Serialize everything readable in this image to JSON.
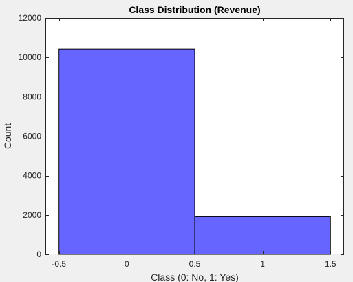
{
  "chart_data": {
    "type": "bar",
    "title": "Class Distribution (Revenue)",
    "xlabel": "Class (0: No, 1: Yes)",
    "ylabel": "Count",
    "bins": [
      {
        "x_start": -0.5,
        "x_end": 0.5,
        "value": 10420
      },
      {
        "x_start": 0.5,
        "x_end": 1.5,
        "value": 1910
      }
    ],
    "xlim": [
      -0.6,
      1.6
    ],
    "ylim": [
      0,
      12000
    ],
    "xticks": [
      -0.5,
      0,
      0.5,
      1,
      1.5
    ],
    "xtick_labels": [
      "-0.5",
      "0",
      "0.5",
      "1",
      "1.5"
    ],
    "yticks": [
      0,
      2000,
      4000,
      6000,
      8000,
      10000,
      12000
    ],
    "ytick_labels": [
      "0",
      "2000",
      "4000",
      "6000",
      "8000",
      "10000",
      "12000"
    ],
    "grid": false,
    "colors": {
      "bar_fill": "#6666ff",
      "bar_edge": "#000000",
      "axes_bg": "#ffffff",
      "figure_bg": "#f0f0f0",
      "axis_color": "#262626"
    }
  }
}
